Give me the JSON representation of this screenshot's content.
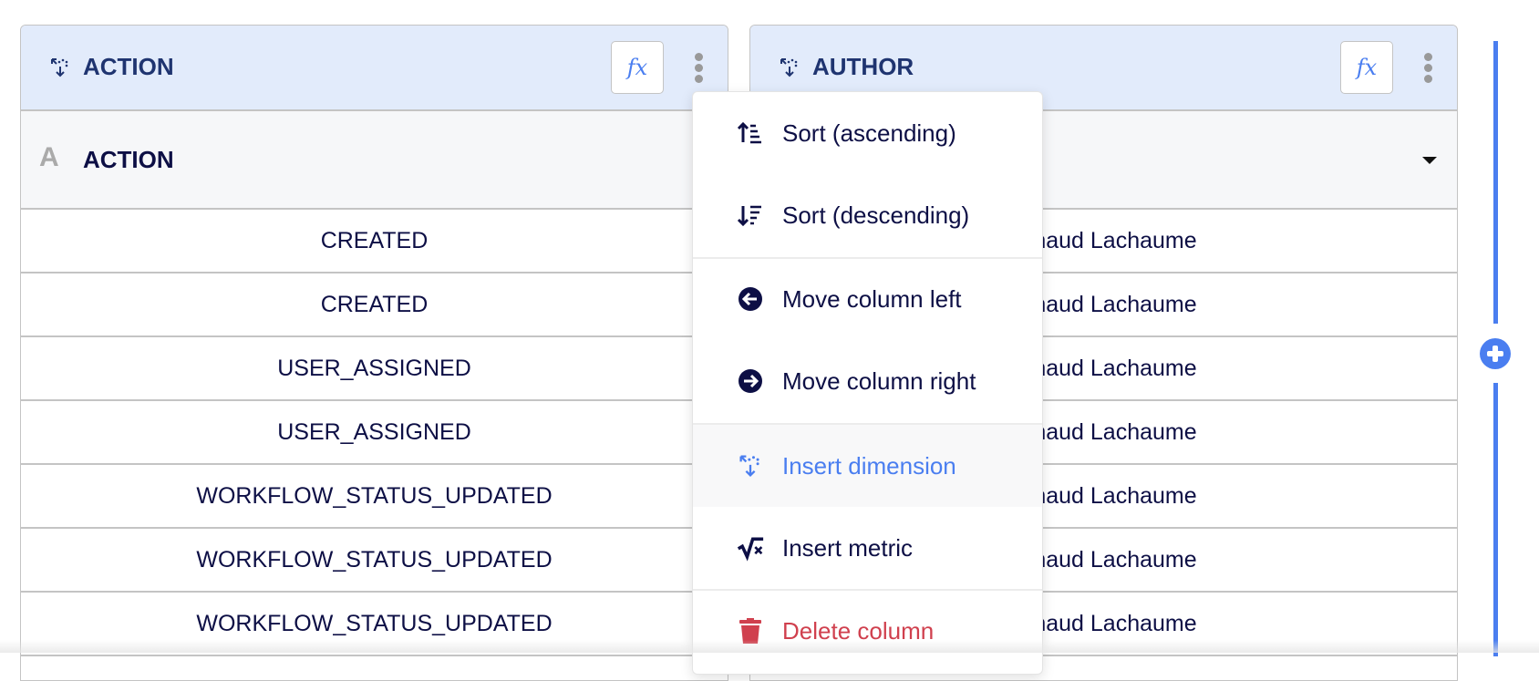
{
  "columns": [
    {
      "header": "ACTION",
      "field": "ACTION",
      "type_icon": "A",
      "fx_label": "fx",
      "rows": [
        "CREATED",
        "CREATED",
        "USER_ASSIGNED",
        "USER_ASSIGNED",
        "WORKFLOW_STATUS_UPDATED",
        "WORKFLOW_STATUS_UPDATED",
        "WORKFLOW_STATUS_UPDATED"
      ]
    },
    {
      "header": "AUTHOR",
      "field": "",
      "fx_label": "fx",
      "rows": [
        "Arnaud Lachaume",
        "Arnaud Lachaume",
        "Arnaud Lachaume",
        "Arnaud Lachaume",
        "Arnaud Lachaume",
        "Arnaud Lachaume",
        "Arnaud Lachaume"
      ]
    }
  ],
  "menu": {
    "items": [
      {
        "label": "Sort (ascending)",
        "icon": "sort-ascending-icon"
      },
      {
        "label": "Sort (descending)",
        "icon": "sort-descending-icon"
      },
      {
        "label": "Move column left",
        "icon": "arrow-circle-left-icon"
      },
      {
        "label": "Move column right",
        "icon": "arrow-circle-right-icon"
      },
      {
        "label": "Insert dimension",
        "icon": "dimension-icon",
        "highlighted": true
      },
      {
        "label": "Insert metric",
        "icon": "square-root-icon"
      },
      {
        "label": "Delete column",
        "icon": "trash-icon"
      }
    ]
  },
  "colors": {
    "accent": "#4a7ef0",
    "header_bg": "#e2ebfb",
    "danger": "#d0404e",
    "text": "#0d0f45"
  }
}
